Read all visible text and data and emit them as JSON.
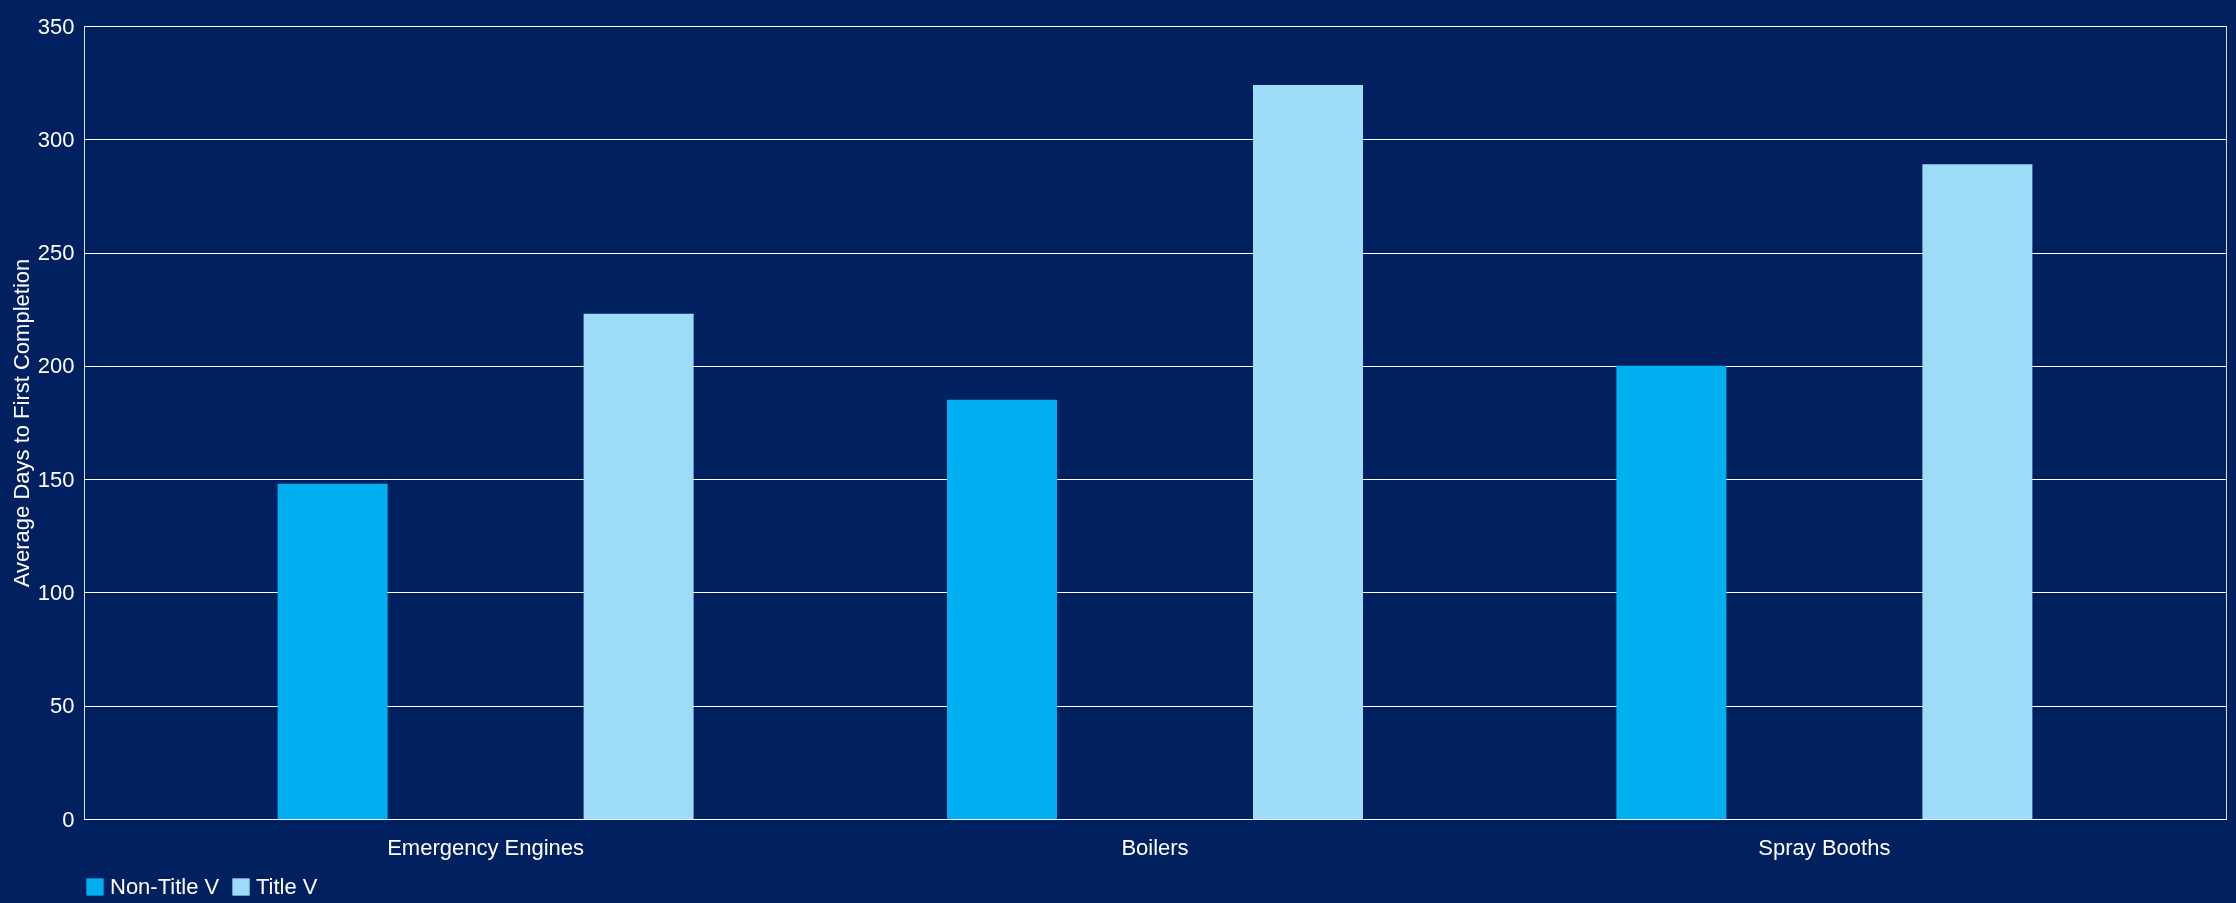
{
  "chart_data": {
    "type": "bar",
    "ylabel": "Average Days to First Completion",
    "categories": [
      "Emergency Engines",
      "Boilers",
      "Spray Booths"
    ],
    "series": [
      {
        "name": "Non-Title V",
        "color": "#00b0f0",
        "values": [
          148,
          185,
          200
        ]
      },
      {
        "name": "Title V",
        "color": "#9ddcf7",
        "values": [
          223,
          324,
          289
        ]
      }
    ],
    "ylim": [
      0,
      350
    ],
    "yticks": [
      0,
      50,
      100,
      150,
      200,
      250,
      300,
      350
    ],
    "grid": "y",
    "legend": "bottom"
  }
}
